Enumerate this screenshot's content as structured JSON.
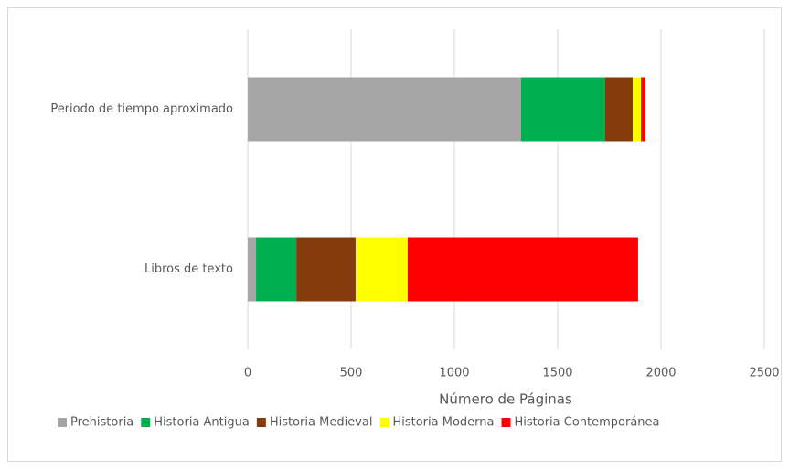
{
  "chart_data": {
    "type": "bar",
    "orientation": "horizontal",
    "stacked": true,
    "x_label": "Número de Páginas",
    "categories": [
      "Periodo de tiempo aproximado",
      "Libros de texto"
    ],
    "series": [
      {
        "name": "Prehistoria",
        "color": "#a5a5a5",
        "values": [
          1323,
          40
        ]
      },
      {
        "name": "Historia Antigua",
        "color": "#00b050",
        "values": [
          407,
          195
        ]
      },
      {
        "name": "Historia Medieval",
        "color": "#843c0c",
        "values": [
          133,
          287
        ]
      },
      {
        "name": "Historia Moderna",
        "color": "#ffff00",
        "values": [
          40,
          252
        ]
      },
      {
        "name": "Historia Contemporánea",
        "color": "#ff0000",
        "values": [
          22,
          1115
        ]
      }
    ],
    "xlim": [
      0,
      2500
    ],
    "xticks": [
      0,
      500,
      1000,
      1500,
      2000,
      2500
    ],
    "grid": true,
    "legend": "bottom"
  }
}
